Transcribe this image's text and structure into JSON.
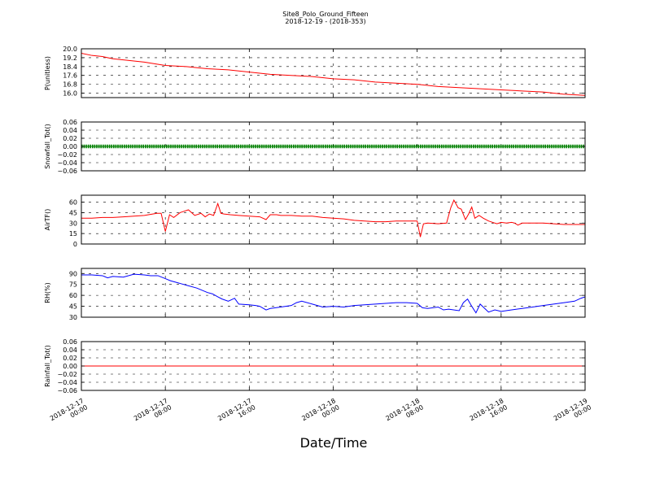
{
  "title": "Site8_Polo_Ground_Fifteen",
  "subtitle": "2018-12-19 - (2018-353)",
  "xlabel": "Date/Time",
  "x_tick_labels": [
    [
      "2018-12-17",
      "00:00"
    ],
    [
      "2018-12-17",
      "08:00"
    ],
    [
      "2018-12-17",
      "16:00"
    ],
    [
      "2018-12-18",
      "00:00"
    ],
    [
      "2018-12-18",
      "08:00"
    ],
    [
      "2018-12-18",
      "16:00"
    ],
    [
      "2018-12-19",
      "00:00"
    ]
  ],
  "chart_data": [
    {
      "type": "line",
      "ylabel": "P(unitless)",
      "ylim": [
        15.6,
        20.0
      ],
      "yticks": [
        16.0,
        16.8,
        17.6,
        18.4,
        19.2,
        20.0
      ],
      "ytick_labels": [
        "16.0",
        "16.8",
        "17.6",
        "18.4",
        "19.2",
        "20.0"
      ],
      "grid": true,
      "color": "#ff0000",
      "x_hours": [
        0,
        1,
        2,
        3,
        4,
        6,
        8,
        10,
        12,
        14,
        16,
        18,
        20,
        22,
        24,
        26,
        28,
        30,
        32,
        34,
        36,
        38,
        40,
        42,
        44,
        46,
        48
      ],
      "values": [
        19.6,
        19.4,
        19.3,
        19.1,
        19.0,
        18.8,
        18.5,
        18.4,
        18.2,
        18.1,
        17.9,
        17.7,
        17.6,
        17.5,
        17.3,
        17.2,
        17.0,
        16.9,
        16.8,
        16.6,
        16.5,
        16.4,
        16.3,
        16.2,
        16.1,
        15.9,
        15.8
      ]
    },
    {
      "type": "line",
      "ylabel": "Snowfall_Tot()",
      "ylim": [
        -0.06,
        0.06
      ],
      "yticks": [
        -0.06,
        -0.04,
        -0.02,
        0.0,
        0.02,
        0.04,
        0.06
      ],
      "ytick_labels": [
        "−0.06",
        "−0.04",
        "−0.02",
        "0.00",
        "0.02",
        "0.04",
        "0.06"
      ],
      "grid": true,
      "color": "#008000",
      "markers": true,
      "x_hours": [
        0,
        48
      ],
      "values": [
        0.0,
        0.0
      ]
    },
    {
      "type": "line",
      "ylabel": "AirTF()",
      "ylim": [
        0,
        70
      ],
      "yticks": [
        0,
        15,
        30,
        45,
        60
      ],
      "ytick_labels": [
        "0",
        "15",
        "30",
        "45",
        "60"
      ],
      "grid": true,
      "color": "#ff0000",
      "x_hours": [
        0,
        1,
        2,
        3,
        4,
        5,
        6,
        6.8,
        7.2,
        7.6,
        8.0,
        8.4,
        8.8,
        9.4,
        9.8,
        10.2,
        10.8,
        11.4,
        11.8,
        12.2,
        12.6,
        13.0,
        13.3,
        13.6,
        14.2,
        15,
        16,
        17,
        17.6,
        18.0,
        18.6,
        19,
        20,
        21,
        22,
        23,
        24,
        25,
        26,
        27,
        28,
        29,
        30,
        31,
        32,
        32.3,
        32.6,
        33.0,
        34.0,
        34.8,
        35.2,
        35.5,
        35.9,
        36.2,
        36.6,
        36.9,
        37.2,
        37.5,
        37.9,
        38.3,
        38.8,
        39.2,
        39.6,
        40,
        40.5,
        41,
        41.3,
        41.6,
        42,
        43,
        44,
        45,
        46,
        47,
        48
      ],
      "values": [
        37,
        37,
        38,
        38,
        39,
        40,
        41,
        43,
        44,
        44,
        18,
        42,
        38,
        45,
        47,
        49,
        41,
        44,
        39,
        43,
        41,
        58,
        44,
        43,
        42,
        41,
        40,
        39,
        35,
        42,
        42,
        41,
        41,
        40,
        40,
        38,
        37,
        36,
        34,
        33,
        32,
        32,
        33,
        33,
        33,
        10,
        29,
        30,
        29,
        30,
        52,
        63,
        52,
        50,
        35,
        43,
        53,
        37,
        41,
        37,
        33,
        31,
        29,
        31,
        30,
        31,
        30,
        27,
        30,
        30,
        30,
        29,
        28,
        28,
        28
      ]
    },
    {
      "type": "line",
      "ylabel": "RH(%)",
      "ylim": [
        30,
        97
      ],
      "yticks": [
        30,
        45,
        60,
        75,
        90
      ],
      "ytick_labels": [
        "30",
        "45",
        "60",
        "75",
        "90"
      ],
      "grid": true,
      "color": "#0000ff",
      "x_hours": [
        0,
        1,
        2,
        2.5,
        3,
        4,
        5,
        6,
        6.6,
        7.3,
        8,
        8.5,
        9,
        9.5,
        10,
        11,
        12,
        12.5,
        13,
        13.4,
        14,
        14.6,
        15,
        16,
        16.6,
        17,
        17.6,
        18,
        19,
        20,
        20.5,
        21,
        22,
        23,
        24,
        25,
        26,
        27,
        28,
        29,
        30,
        31,
        32,
        32.5,
        33,
        34,
        34.5,
        35,
        36,
        36.4,
        36.8,
        37.2,
        37.6,
        38,
        38.8,
        39.4,
        40,
        41,
        42,
        43,
        44,
        45,
        46,
        47,
        47.6,
        48
      ],
      "values": [
        88,
        88,
        87,
        84,
        86,
        85,
        89,
        88,
        87,
        87,
        83,
        80,
        78,
        76,
        74,
        70,
        64,
        62,
        58,
        55,
        52,
        56,
        48,
        47,
        46,
        45,
        40,
        42,
        44,
        46,
        50,
        52,
        48,
        44,
        45,
        44,
        46,
        47,
        48,
        49,
        50,
        50,
        49,
        43,
        42,
        44,
        40,
        41,
        39,
        50,
        55,
        45,
        36,
        48,
        37,
        40,
        38,
        40,
        42,
        44,
        46,
        48,
        50,
        52,
        56,
        58
      ]
    },
    {
      "type": "line",
      "ylabel": "Rainfall_Tot()",
      "ylim": [
        -0.06,
        0.06
      ],
      "yticks": [
        -0.06,
        -0.04,
        -0.02,
        0.0,
        0.02,
        0.04,
        0.06
      ],
      "ytick_labels": [
        "−0.06",
        "−0.04",
        "−0.02",
        "0.00",
        "0.02",
        "0.04",
        "0.06"
      ],
      "grid": true,
      "color": "#ff0000",
      "x_hours": [
        0,
        48
      ],
      "values": [
        0.0,
        0.0
      ]
    }
  ]
}
